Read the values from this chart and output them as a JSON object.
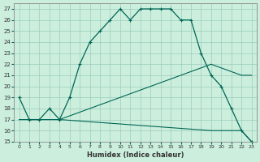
{
  "xlabel": "Humidex (Indice chaleur)",
  "bg_color": "#cceedd",
  "grid_color": "#99ccbb",
  "line_color": "#006655",
  "xlim": [
    -0.5,
    23.5
  ],
  "ylim": [
    15,
    27.5
  ],
  "xticks": [
    0,
    1,
    2,
    3,
    4,
    5,
    6,
    7,
    8,
    9,
    10,
    11,
    12,
    13,
    14,
    15,
    16,
    17,
    18,
    19,
    20,
    21,
    22,
    23
  ],
  "yticks": [
    15,
    16,
    17,
    18,
    19,
    20,
    21,
    22,
    23,
    24,
    25,
    26,
    27
  ],
  "curve1_x": [
    0,
    1,
    2,
    3,
    4,
    5,
    6,
    7,
    8,
    9,
    10,
    11,
    12,
    13,
    14,
    15,
    16,
    17,
    18,
    19,
    20,
    21,
    22,
    23
  ],
  "curve1_y": [
    19,
    17,
    17,
    18,
    17,
    19,
    22,
    24,
    25,
    26,
    27,
    26,
    27,
    27,
    27,
    27,
    26,
    26,
    23,
    21,
    20,
    18,
    16,
    15
  ],
  "curve2_x": [
    0,
    4,
    19,
    22,
    23
  ],
  "curve2_y": [
    17,
    17,
    22,
    21,
    21
  ],
  "curve3_x": [
    0,
    4,
    19,
    22,
    23
  ],
  "curve3_y": [
    17,
    17,
    16,
    16,
    15
  ]
}
